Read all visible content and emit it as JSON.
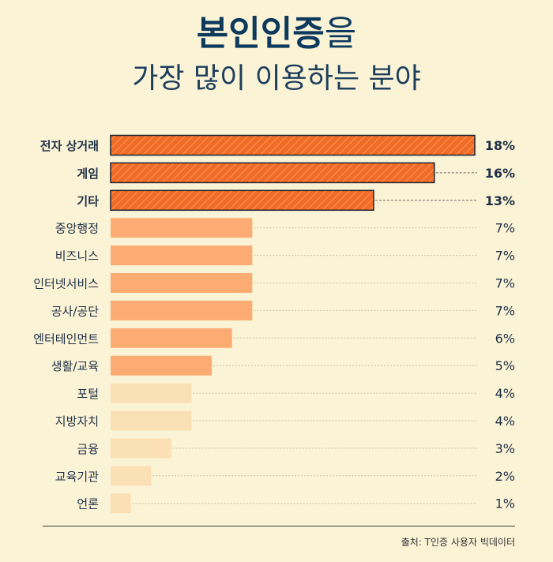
{
  "title": {
    "line1_bold": "본인인증",
    "line1_rest": "을",
    "line2": "가장 많이 이용하는 분야"
  },
  "source": "출처: T인증 사용자 빅데이터",
  "colors": {
    "background": "#fbf3d6",
    "top_bar": "#f26b25",
    "mid_bar": "#fcac72",
    "light_bar": "#fce0b5",
    "text_dark": "#1d2f45"
  },
  "chart_data": {
    "type": "bar",
    "orientation": "horizontal",
    "categories": [
      "전자 상거래",
      "게임",
      "기타",
      "중앙행정",
      "비즈니스",
      "인터넷서비스",
      "공사/공단",
      "엔터테인먼트",
      "생활/교육",
      "포털",
      "지방자치",
      "금융",
      "교육기관",
      "언론"
    ],
    "values": [
      18,
      16,
      13,
      7,
      7,
      7,
      7,
      6,
      5,
      4,
      4,
      3,
      2,
      1
    ],
    "value_labels": [
      "18%",
      "16%",
      "13%",
      "7%",
      "7%",
      "7%",
      "7%",
      "6%",
      "5%",
      "4%",
      "4%",
      "3%",
      "2%",
      "1%"
    ],
    "tiers": [
      "top",
      "top",
      "top",
      "mid",
      "mid",
      "mid",
      "mid",
      "mid",
      "mid",
      "light",
      "light",
      "light",
      "light",
      "light"
    ],
    "unit": "%",
    "xlim": [
      0,
      18
    ],
    "grid": false,
    "legend": "none"
  }
}
